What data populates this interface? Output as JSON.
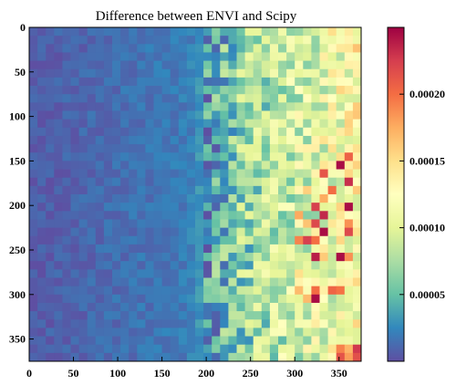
{
  "chart_data": {
    "type": "heatmap",
    "title": "Difference between ENVI and Scipy",
    "xlabel": "",
    "ylabel": "",
    "xlim": [
      0,
      375
    ],
    "ylim": [
      375,
      0
    ],
    "x_ticks": [
      "0",
      "50",
      "100",
      "150",
      "200",
      "250",
      "300",
      "350"
    ],
    "y_ticks": [
      "0",
      "50",
      "100",
      "150",
      "200",
      "250",
      "300",
      "350"
    ],
    "colorbar": {
      "min": 0,
      "max": 0.00025,
      "ticks": [
        "0.00005",
        "0.00010",
        "0.00015",
        "0.00020"
      ],
      "colormap": "Spectral_r"
    },
    "grid": false,
    "description_of_values": "Values near 0 for x < 200, increasing to ~0.0001 for x > 250, with peaks ~0.00024 near x 310-360, y 150-300."
  }
}
